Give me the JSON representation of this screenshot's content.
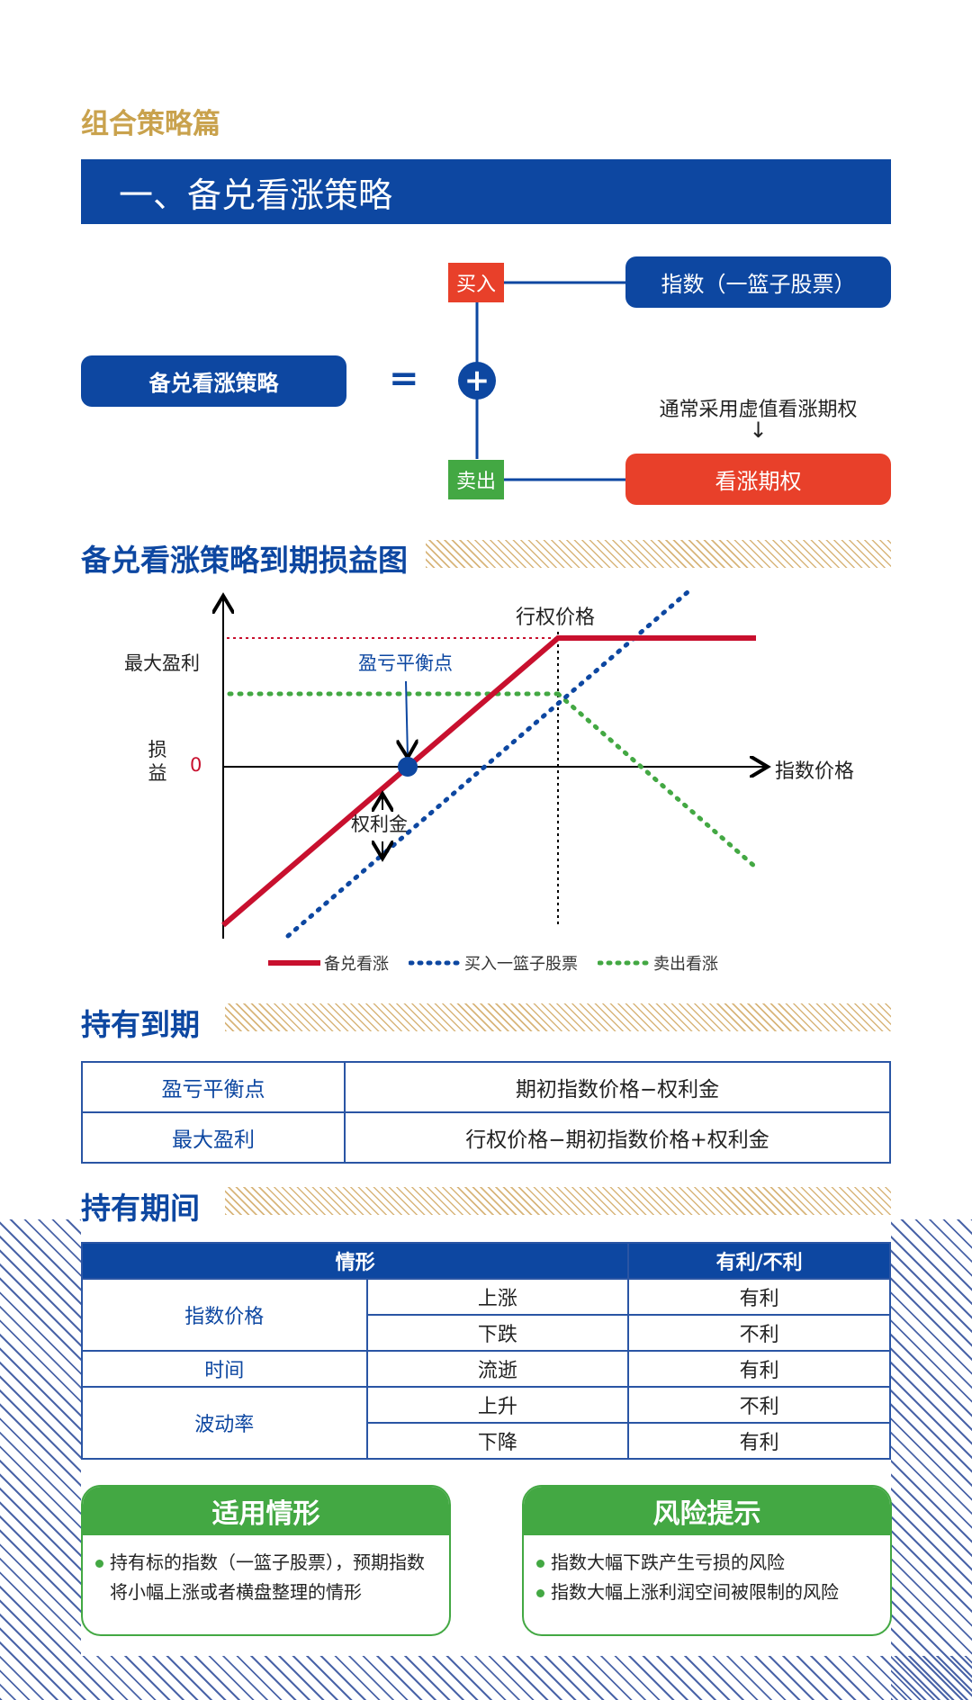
{
  "header": {
    "category": "组合策略篇",
    "title": "一、备兑看涨策略"
  },
  "formula": {
    "strategy_label": "备兑看涨策略",
    "equals": "=",
    "plus": "+",
    "buy_label": "买入",
    "buy_target": "指数（一篮子股票）",
    "note": "通常采用虚值看涨期权",
    "note_arrow": "↓",
    "sell_label": "卖出",
    "sell_target": "看涨期权"
  },
  "payoff_section": {
    "title": "备兑看涨策略到期损益图"
  },
  "chart_data": {
    "type": "line",
    "title": "",
    "xlabel": "指数价格",
    "ylabel": "损益",
    "annotations": {
      "strike": "行权价格",
      "max_profit": "最大盈利",
      "breakeven": "盈亏平衡点",
      "premium": "权利金",
      "zero": "0"
    },
    "series": [
      {
        "name": "备兑看涨",
        "style": "solid",
        "color": "#c8102e"
      },
      {
        "name": "买入一篮子股票",
        "style": "dotted",
        "color": "#0d47a1"
      },
      {
        "name": "卖出看涨",
        "style": "dotted",
        "color": "#43a843"
      }
    ]
  },
  "hold_to_expiry": {
    "title": "持有到期",
    "rows": [
      {
        "label": "盈亏平衡点",
        "value": "期初指数价格−权利金"
      },
      {
        "label": "最大盈利",
        "value": "行权价格−期初指数价格+权利金"
      }
    ]
  },
  "holding_period": {
    "title": "持有期间",
    "header_situation": "情形",
    "header_effect": "有利/不利",
    "groups": [
      {
        "factor": "指数价格",
        "rows": [
          {
            "change": "上涨",
            "effect": "有利"
          },
          {
            "change": "下跌",
            "effect": "不利"
          }
        ]
      },
      {
        "factor": "时间",
        "rows": [
          {
            "change": "流逝",
            "effect": "有利"
          }
        ]
      },
      {
        "factor": "波动率",
        "rows": [
          {
            "change": "上升",
            "effect": "不利"
          },
          {
            "change": "下降",
            "effect": "有利"
          }
        ]
      }
    ]
  },
  "applicable": {
    "title": "适用情形",
    "items": [
      "持有标的指数（一篮子股票），预期指数将小幅上涨或者横盘整理的情形"
    ]
  },
  "risk": {
    "title": "风险提示",
    "items": [
      "指数大幅下跌产生亏损的风险",
      "指数大幅上涨利润空间被限制的风险"
    ]
  }
}
